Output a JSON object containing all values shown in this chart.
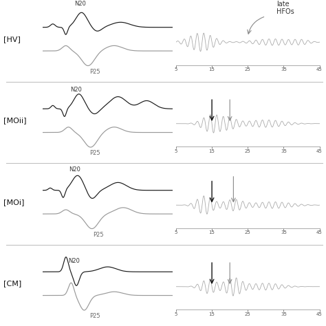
{
  "rows": [
    "[HV]",
    "[MOii]",
    "[MOi]",
    "[CM]"
  ],
  "background_color": "#ffffff",
  "sep_dark_color": "#1a1a1a",
  "sep_gray_color": "#999999",
  "hfo_color": "#aaaaaa",
  "separator_color": "#cccccc",
  "arrow_black": "#111111",
  "arrow_gray": "#888888",
  "label_fontsize": 8,
  "tick_fontsize": 5,
  "n20_fontsize": 6,
  "p25_fontsize": 6,
  "trace_fontsize": 6,
  "hfo_label": "late\nHFOs"
}
